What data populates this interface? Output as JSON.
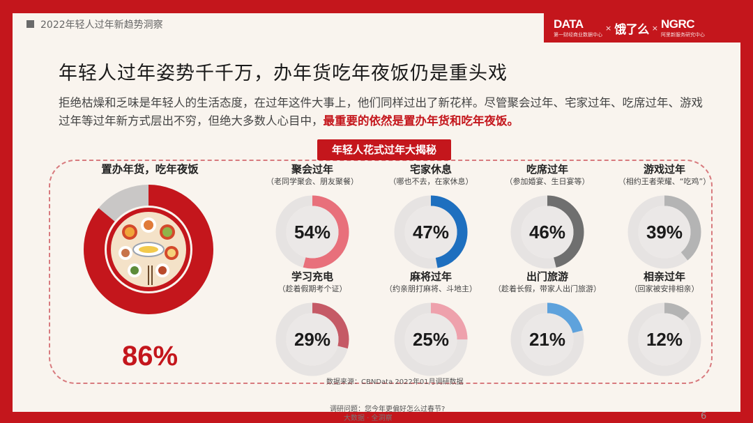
{
  "header": {
    "section_title": "2022年轻人过年新趋势洞察"
  },
  "logos": {
    "logo1": "DATA",
    "logo1_sub": "第一财经商业数据中心",
    "sep": "×",
    "logo2": "饿了么",
    "logo3": "NGRC",
    "logo3_sub": "阿里新服务研究中心"
  },
  "title": "年轻人过年姿势千千万，办年货吃年夜饭仍是重头戏",
  "description": {
    "normal": "拒绝枯燥和乏味是年轻人的生活态度，在过年这件大事上，他们同样过出了新花样。尽管聚会过年、宅家过年、吃席过年、游戏过年等过年新方式层出不穷，但绝大多数人心目中，",
    "highlight": "最重要的依然是置办年货和吃年夜饭。"
  },
  "panel_label": "年轻人花式过年大揭秘",
  "colors": {
    "brand_red": "#c4161c",
    "track": "#e6e3e2",
    "pink": "#e8707b",
    "blue": "#1e6fbf",
    "dark_gray": "#6f6f6f",
    "light_gray": "#b4b4b4",
    "rose": "#c55a66",
    "light_pink": "#eea1ac",
    "light_blue": "#5ea2dc"
  },
  "chart_data": {
    "type": "donut",
    "featured": {
      "label": "置办年货，吃年夜饭",
      "value": 86,
      "display": "86%",
      "color": "#c4161c"
    },
    "items": [
      {
        "label": "聚会过年",
        "sub": "（老同学聚会、朋友聚餐）",
        "value": 54,
        "display": "54%",
        "color": "#e8707b"
      },
      {
        "label": "宅家休息",
        "sub": "（哪也不去，在家休息）",
        "value": 47,
        "display": "47%",
        "color": "#1e6fbf"
      },
      {
        "label": "吃席过年",
        "sub": "（参加婚宴、生日宴等）",
        "value": 46,
        "display": "46%",
        "color": "#6f6f6f"
      },
      {
        "label": "游戏过年",
        "sub": "（相约王者荣耀、“吃鸡”）",
        "value": 39,
        "display": "39%",
        "color": "#b4b4b4"
      },
      {
        "label": "学习充电",
        "sub": "（趁着假期考个证）",
        "value": 29,
        "display": "29%",
        "color": "#c55a66"
      },
      {
        "label": "麻将过年",
        "sub": "（约亲朋打麻将、斗地主）",
        "value": 25,
        "display": "25%",
        "color": "#eea1ac"
      },
      {
        "label": "出门旅游",
        "sub": "（趁着长假，带家人出门旅游）",
        "value": 21,
        "display": "21%",
        "color": "#5ea2dc"
      },
      {
        "label": "相亲过年",
        "sub": "（回家被安排相亲）",
        "value": 12,
        "display": "12%",
        "color": "#b4b4b4"
      }
    ]
  },
  "footer": {
    "source": "数据来源：CBNData 2022年01月调研数据",
    "question": "调研问题：您今年更偏好怎么过春节?",
    "tagline": "大数据 · 全洞察",
    "page": "6"
  }
}
